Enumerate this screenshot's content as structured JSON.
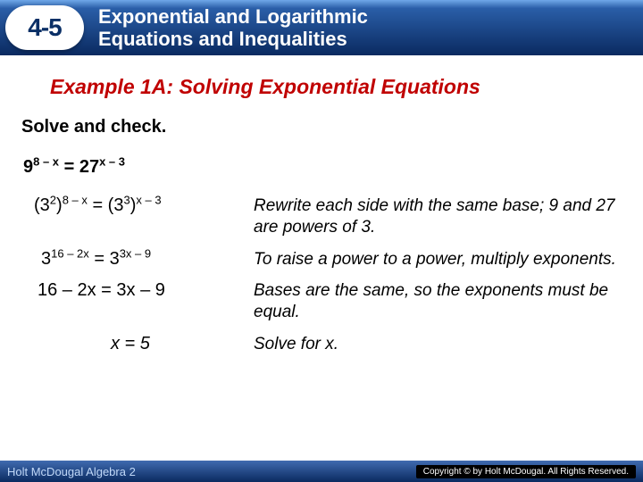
{
  "header": {
    "lesson_number": "4-5",
    "title_line1": "Exponential and Logarithmic",
    "title_line2": "Equations and Inequalities"
  },
  "example_title": "Example 1A: Solving Exponential Equations",
  "instruction": "Solve and check.",
  "problem": {
    "base1": "9",
    "exp1": "8 – x",
    "eq": " = ",
    "base2": "27",
    "exp2": "x – 3"
  },
  "steps": [
    {
      "math_html": "(3<sup>2</sup>)<sup>8 – x</sup> = (3<sup>3</sup>)<sup>x – 3</sup>",
      "explain": "Rewrite each side with the same base; 9 and 27 are powers of 3."
    },
    {
      "math_html": "3<sup>16 – 2x</sup> = 3<sup>3x – 9</sup>",
      "explain": "To raise a power to a power, multiply exponents."
    },
    {
      "math_html": "16 – 2x = 3x – 9",
      "explain": "Bases are the same, so the exponents must be equal."
    },
    {
      "math_html": "x = 5",
      "explain": "Solve for x."
    }
  ],
  "footer": {
    "left": "Holt McDougal Algebra 2",
    "right": "Copyright © by Holt McDougal. All Rights Reserved."
  },
  "colors": {
    "header_gradient_top": "#6fa8e8",
    "header_gradient_bottom": "#0a2a60",
    "example_title": "#c00000",
    "text": "#000000",
    "footer_text": "#c0d8f8"
  }
}
